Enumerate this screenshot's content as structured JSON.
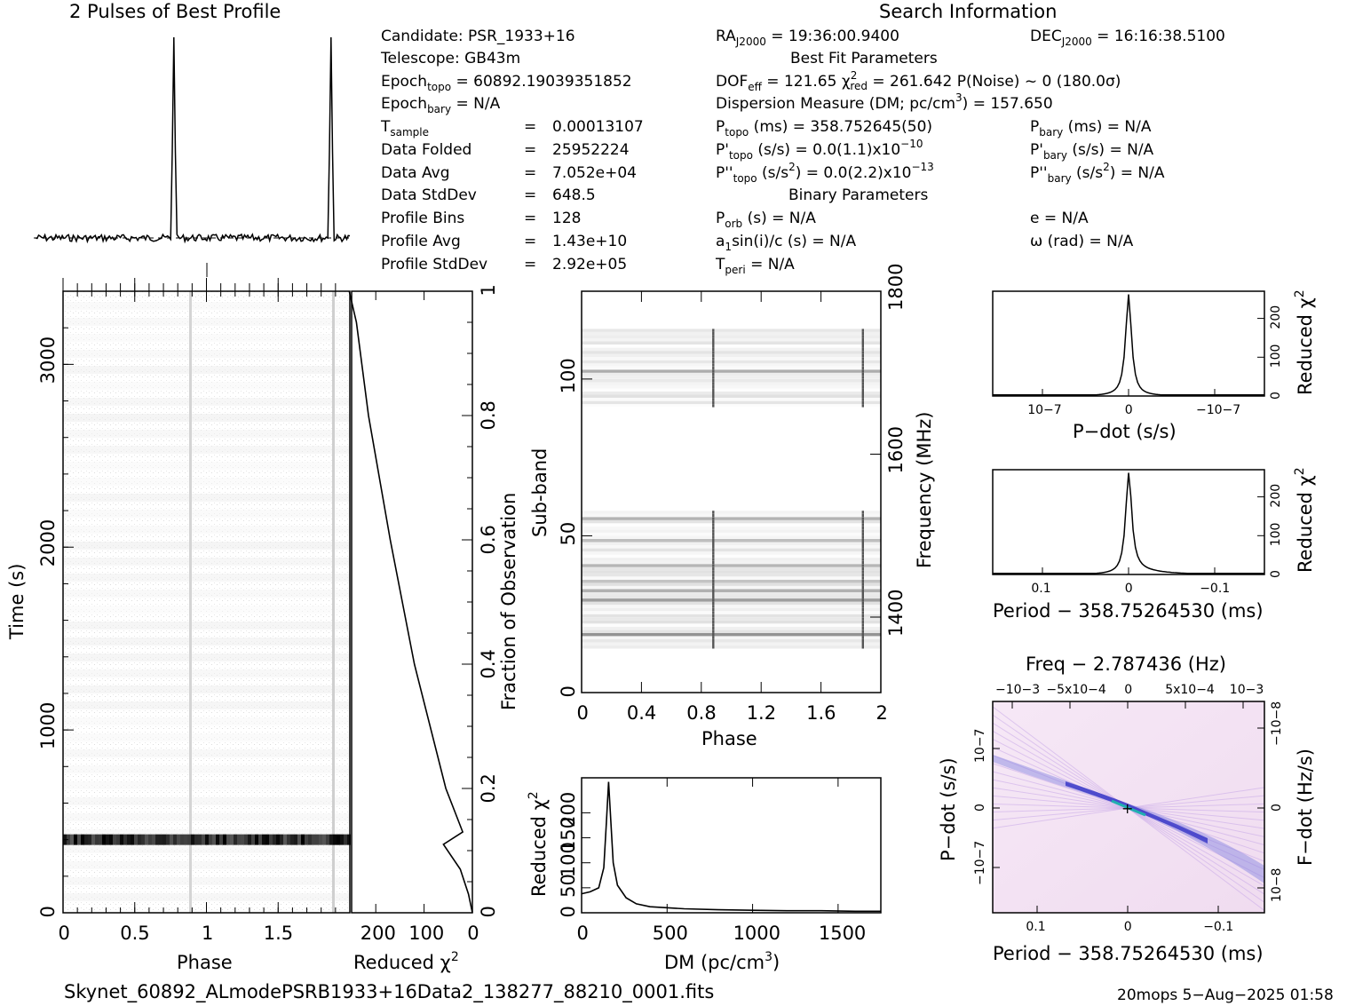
{
  "profile": {
    "title": "2 Pulses of Best Profile"
  },
  "search": {
    "header": "Search Information",
    "best_fit_header": "Best Fit Parameters",
    "binary_header": "Binary Parameters",
    "candidate": "Candidate:  PSR_1933+16",
    "telescope": "Telescope:  GB43m",
    "epoch_topo_lbl": "Epoch",
    "epoch_topo_sub": "topo",
    "epoch_topo_val": " = 60892.19039351852",
    "epoch_bary_lbl": "Epoch",
    "epoch_bary_sub": "bary",
    "epoch_bary_val": " = N/A",
    "tsample_lbl": "T",
    "tsample_sub": "sample",
    "tsample_val": "0.00013107",
    "data_folded_lbl": "Data Folded",
    "data_folded_val": "25952224",
    "data_avg_lbl": "Data Avg",
    "data_avg_val": "7.052e+04",
    "data_std_lbl": "Data StdDev",
    "data_std_val": "648.5",
    "prof_bins_lbl": "Profile Bins",
    "prof_bins_val": "128",
    "prof_avg_lbl": "Profile Avg",
    "prof_avg_val": "1.43e+10",
    "prof_std_lbl": "Profile StdDev",
    "prof_std_val": "2.92e+05",
    "eq": "=",
    "ra_lbl": "RA",
    "ra_sub": "J2000",
    "ra_val": " = 19:36:00.9400",
    "dec_lbl": "DEC",
    "dec_sub": "J2000",
    "dec_val": " = 16:16:38.5100",
    "dof_lbl": "DOF",
    "dof_sub": "eff",
    "dof_val": " = 121.65  ",
    "chi_lbl": "χ",
    "chi_sup": "2",
    "chi_sub": "red",
    "chi_val": " = 261.642   P(Noise) ~ 0    (180.0σ)",
    "dm_text": "Dispersion Measure (DM; pc/cm",
    "dm_sup": "3",
    "dm_val": ") = 157.650",
    "ptopo_lbl": "P",
    "ptopo_sub": "topo",
    "ptopo_val": " (ms) =  358.752645(50)",
    "pbary_lbl": "P",
    "pbary_sub": "bary",
    "pbary_val": " (ms) = N/A",
    "pdtopo_lbl": "P'",
    "pdtopo_sub": "topo",
    "pdtopo_val": " (s/s) = 0.0(1.1)x10",
    "pdtopo_exp": "−10",
    "pdbary_lbl": "P'",
    "pdbary_sub": "bary",
    "pdbary_val": " (s/s) = N/A",
    "pddtopo_lbl": "P''",
    "pddtopo_sub": "topo",
    "pddtopo_val": " (s/s",
    "pddtopo_sup": "2",
    "pddtopo_val2": ") = 0.0(2.2)x10",
    "pddtopo_exp": "−13",
    "pddbary_lbl": "P''",
    "pddbary_sub": "bary",
    "pddbary_val": " (s/s",
    "pddbary_sup": "2",
    "pddbary_val2": ") = N/A",
    "porb_lbl": "P",
    "porb_sub": "orb",
    "porb_val": " (s) = N/A",
    "e_val": "e = N/A",
    "a1_lbl": "a",
    "a1_sub": "1",
    "a1_val": "sin(i)/c (s) = N/A",
    "omega_val": "ω (rad) = N/A",
    "tperi_lbl": "T",
    "tperi_sub": "peri",
    "tperi_val": " = N/A"
  },
  "labels": {
    "time_ylabel": "Time (s)",
    "phase_xlabel": "Phase",
    "redchi_xlabel": "Reduced χ",
    "redchi_sup": "2",
    "fraction_ylabel": "Fraction of Observation",
    "subband_ylabel": "Sub-band",
    "freq_ylabel": "Frequency (MHz)",
    "phase2_xlabel": "Phase",
    "dm_xlabel": "DM (pc/cm",
    "dm_xlabel_sup": "3",
    "dm_xlabel_end": ")",
    "redchi_ylabel": "Reduced χ",
    "pdot_xlabel": "P−dot (s/s)",
    "period_xlabel": "Period − 358.75264530 (ms)",
    "period2_xlabel": "Period − 358.75264530 (ms)",
    "freq_title": "Freq − 2.787436 (Hz)",
    "pdot_ylabel": "P−dot (s/s)",
    "fdot_ylabel": "F−dot (Hz/s)"
  },
  "footer": {
    "filename": "Skynet_60892_ALmodePSRB1933+16Data2_138277_88210_0001.fits",
    "stamp": "20mops   5−Aug−2025 01:58"
  },
  "chart_data": [
    {
      "type": "line",
      "title": "2 Pulses of Best Profile",
      "x_range": [
        0,
        2
      ],
      "peaks_at_phase": [
        0.88,
        1.88
      ],
      "baseline_dashed": true
    },
    {
      "type": "heatmap",
      "name": "time-vs-phase",
      "xlabel": "Phase",
      "ylabel": "Time (s)",
      "xlim": [
        0,
        2
      ],
      "ylim": [
        0,
        3400
      ],
      "xticks": [
        "0",
        "0.5",
        "1",
        "1.5"
      ],
      "yticks": [
        "0",
        "1000",
        "2000",
        "3000"
      ],
      "pulse_phase": [
        0.88,
        1.88
      ],
      "bright_time_s": 400
    },
    {
      "type": "line",
      "name": "reduced-chi2-vs-fraction",
      "xlabel": "Reduced χ2",
      "ylabel": "Fraction of Observation",
      "xlim": [
        250,
        0
      ],
      "ylim": [
        0,
        1
      ],
      "xticks": [
        "200",
        "100",
        "0"
      ],
      "yticks": [
        "0",
        "0.2",
        "0.4",
        "0.6",
        "0.8",
        "1"
      ],
      "x": [
        0,
        8,
        25,
        60,
        20,
        55,
        120,
        170,
        215,
        240,
        255
      ],
      "y": [
        0,
        0.03,
        0.07,
        0.11,
        0.13,
        0.2,
        0.4,
        0.6,
        0.8,
        0.95,
        1.0
      ]
    },
    {
      "type": "heatmap",
      "name": "subband-vs-phase",
      "xlabel": "Phase",
      "ylabel": "Sub-band",
      "right_ylabel": "Frequency (MHz)",
      "xlim": [
        0,
        2
      ],
      "ylim": [
        0,
        128
      ],
      "xticks": [
        "0",
        "0.4",
        "0.8",
        "1.2",
        "1.6",
        "2"
      ],
      "yticks": [
        "0",
        "50",
        "100"
      ],
      "right_yticks": [
        "1400",
        "1600",
        "1800"
      ],
      "filled_bands": [
        [
          14,
          58
        ],
        [
          91,
          116
        ]
      ]
    },
    {
      "type": "line",
      "name": "reduced-chi2-vs-dm",
      "xlabel": "DM (pc/cm3)",
      "ylabel": "Reduced χ2",
      "xlim": [
        0,
        1750
      ],
      "ylim": [
        0,
        270
      ],
      "xticks": [
        "0",
        "500",
        "1000",
        "1500"
      ],
      "yticks": [
        "0",
        "50",
        "100",
        "150",
        "200"
      ],
      "x": [
        0,
        50,
        100,
        130,
        145,
        157.65,
        170,
        185,
        210,
        260,
        320,
        400,
        600,
        800,
        1000,
        1200,
        1400,
        1600,
        1750
      ],
      "y": [
        38,
        42,
        50,
        90,
        180,
        262,
        190,
        100,
        55,
        30,
        18,
        12,
        8,
        6,
        5,
        4,
        4,
        3,
        3
      ]
    },
    {
      "type": "line",
      "name": "reduced-chi2-vs-pdot",
      "xlabel": "P−dot (s/s)",
      "ylabel": "Reduced χ2",
      "xticks": [
        "10−7",
        "0",
        "−10−7"
      ],
      "yticks": [
        "0",
        "100",
        "200"
      ],
      "ylim": [
        0,
        270
      ],
      "peak": 262
    },
    {
      "type": "line",
      "name": "reduced-chi2-vs-period",
      "xlabel": "Period − 358.75264530 (ms)",
      "ylabel": "Reduced χ2",
      "xticks": [
        "0.1",
        "0",
        "−0.1"
      ],
      "yticks": [
        "0",
        "100",
        "200"
      ],
      "ylim": [
        0,
        270
      ],
      "peak": 262
    },
    {
      "type": "heatmap",
      "name": "pdot-vs-period",
      "title": "Freq − 2.787436 (Hz)",
      "xlabel": "Period − 358.75264530 (ms)",
      "ylabel": "P−dot (s/s)",
      "right_ylabel": "F−dot (Hz/s)",
      "xticks": [
        "0.1",
        "0",
        "−0.1"
      ],
      "top_xticks": [
        "−10−3",
        "−5x10−4",
        "0",
        "5x10−4",
        "10−3"
      ],
      "yticks": [
        "10−7",
        "0",
        "−10−7"
      ],
      "right_yticks": [
        "−10−8",
        "0",
        "10−8"
      ]
    }
  ]
}
